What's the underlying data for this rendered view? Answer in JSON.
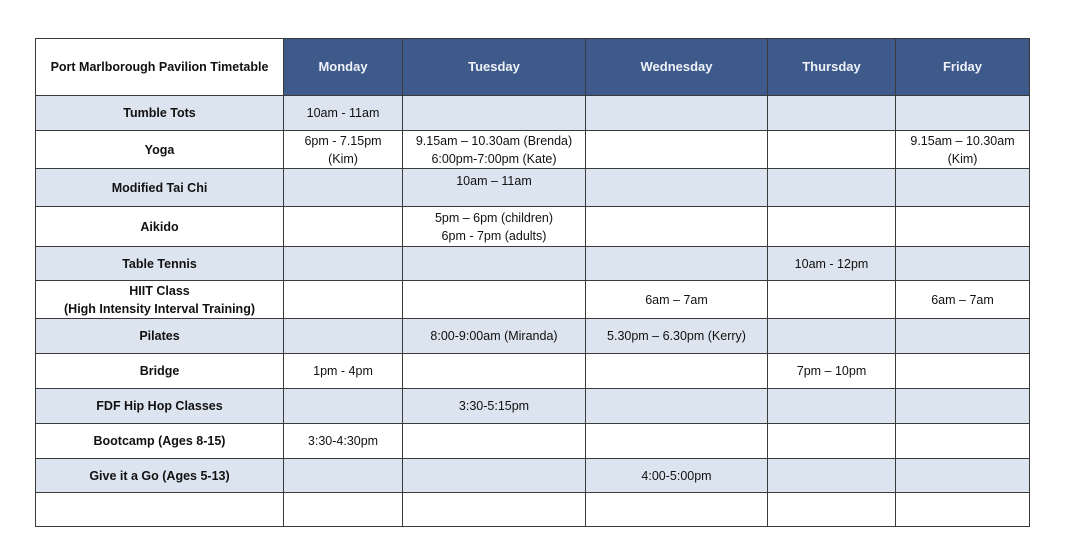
{
  "table": {
    "title": "Port Marlborough Pavilion Timetable",
    "days": [
      "Monday",
      "Tuesday",
      "Wednesday",
      "Thursday",
      "Friday"
    ],
    "colors": {
      "header": "#3d5a8a",
      "shade": "#dce4ef"
    },
    "rows": [
      {
        "name": "Tumble Tots",
        "cells": [
          "10am - 11am",
          "",
          "",
          "",
          ""
        ]
      },
      {
        "name": "Yoga",
        "cells": [
          "6pm - 7.15pm\n(Kim)",
          "9.15am – 10.30am (Brenda)\n6:00pm-7:00pm (Kate)",
          "",
          "",
          "9.15am – 10.30am\n(Kim)"
        ]
      },
      {
        "name": "Modified Tai Chi",
        "cells": [
          "",
          "10am – 11am",
          "",
          "",
          ""
        ]
      },
      {
        "name": "Aikido",
        "cells": [
          "",
          "5pm – 6pm (children)\n6pm - 7pm (adults)",
          "",
          "",
          ""
        ]
      },
      {
        "name": "Table Tennis",
        "cells": [
          "",
          "",
          "",
          "10am - 12pm",
          ""
        ]
      },
      {
        "name": "HIIT Class\n(High Intensity Interval Training)",
        "cells": [
          "",
          "",
          "6am – 7am",
          "",
          "6am – 7am"
        ]
      },
      {
        "name": "Pilates",
        "cells": [
          "",
          "8:00-9:00am (Miranda)",
          "5.30pm – 6.30pm (Kerry)",
          "",
          ""
        ]
      },
      {
        "name": "Bridge",
        "cells": [
          "1pm - 4pm",
          "",
          "",
          "7pm – 10pm",
          ""
        ]
      },
      {
        "name": "FDF Hip Hop Classes",
        "cells": [
          "",
          "3:30-5:15pm",
          "",
          "",
          ""
        ]
      },
      {
        "name": "Bootcamp (Ages 8-15)",
        "cells": [
          "3:30-4:30pm",
          "",
          "",
          "",
          ""
        ]
      },
      {
        "name": "Give it a Go (Ages 5-13)",
        "cells": [
          "",
          "",
          "4:00-5:00pm",
          "",
          ""
        ]
      },
      {
        "name": "",
        "cells": [
          "",
          "",
          "",
          "",
          ""
        ]
      }
    ]
  }
}
